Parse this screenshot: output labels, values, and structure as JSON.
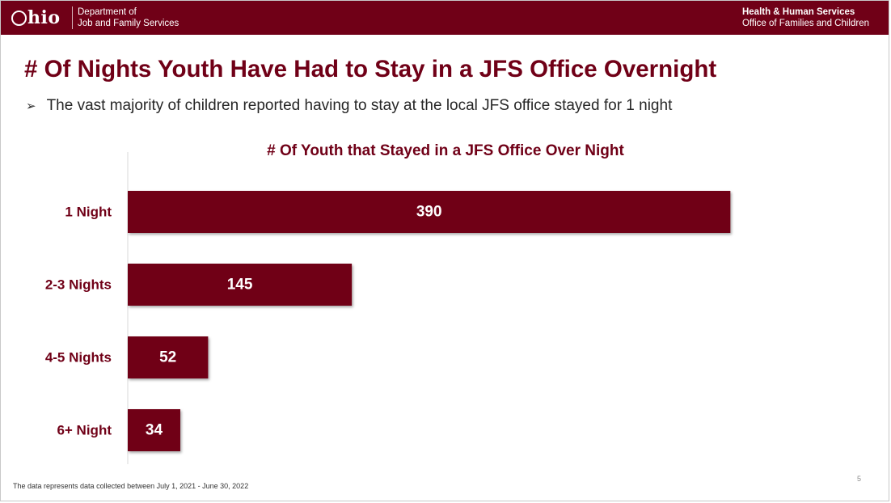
{
  "header": {
    "logo_text": "hio",
    "department_line1": "Department of",
    "department_line2": "Job and Family Services",
    "agency_line1": "Health & Human Services",
    "agency_line2": "Office of Families and Children"
  },
  "slide": {
    "title": "# Of Nights Youth Have Had to Stay in a JFS Office Overnight",
    "bullet_icon": "➢",
    "bullet_text": "The vast majority of children reported having to stay at the local JFS office stayed for 1 night",
    "footnote": "The data represents data collected between July 1, 2021 - June 30, 2022",
    "page_number": "5"
  },
  "colors": {
    "brand": "#700017",
    "bar": "#700017",
    "bar_label": "#ffffff",
    "text": "#262626"
  },
  "chart_data": {
    "type": "bar",
    "orientation": "horizontal",
    "title": "# Of Youth that Stayed in a JFS Office Over Night",
    "categories": [
      "1 Night",
      "2-3 Nights",
      "4-5 Nights",
      "6+ Night"
    ],
    "values": [
      390,
      145,
      52,
      34
    ],
    "xlim": [
      0,
      450
    ],
    "data_labels": true,
    "grid": false,
    "legend": "none"
  }
}
